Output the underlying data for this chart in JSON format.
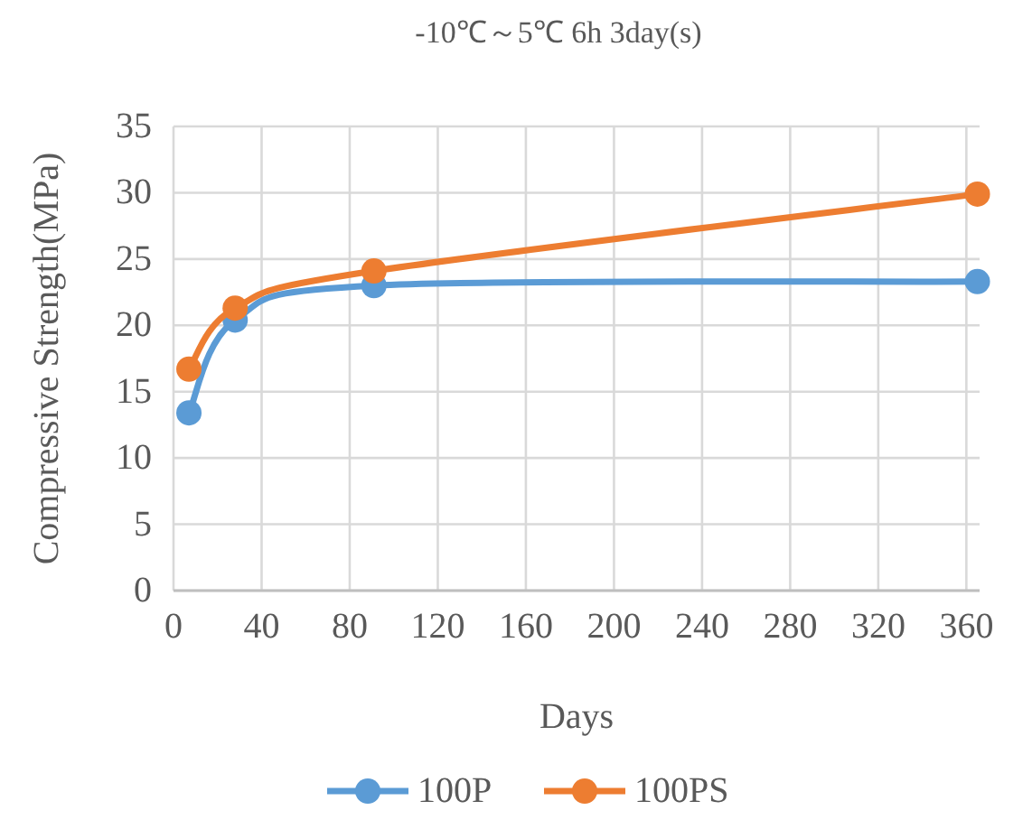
{
  "chart_data": {
    "type": "line",
    "title": "-10℃～5℃ 6h 3day(s)",
    "xlabel": "Days",
    "ylabel": "Compressive Strength(MPa)",
    "series": [
      {
        "name": "100P",
        "color": "#5b9bd5",
        "x": [
          7,
          28,
          91,
          365
        ],
        "values": [
          13.4,
          20.4,
          23.0,
          23.3
        ]
      },
      {
        "name": "100PS",
        "color": "#ed7d31",
        "x": [
          7,
          28,
          91,
          365
        ],
        "values": [
          16.7,
          21.3,
          24.1,
          29.9
        ]
      }
    ],
    "xlim": [
      0,
      366
    ],
    "xticks": [
      0,
      40,
      80,
      120,
      160,
      200,
      240,
      280,
      320,
      360
    ],
    "ylim": [
      0,
      35
    ],
    "yticks": [
      0,
      5,
      10,
      15,
      20,
      25,
      30,
      35
    ],
    "grid": true,
    "legend": "bottom",
    "marker": "circle",
    "line_style": "solid"
  }
}
